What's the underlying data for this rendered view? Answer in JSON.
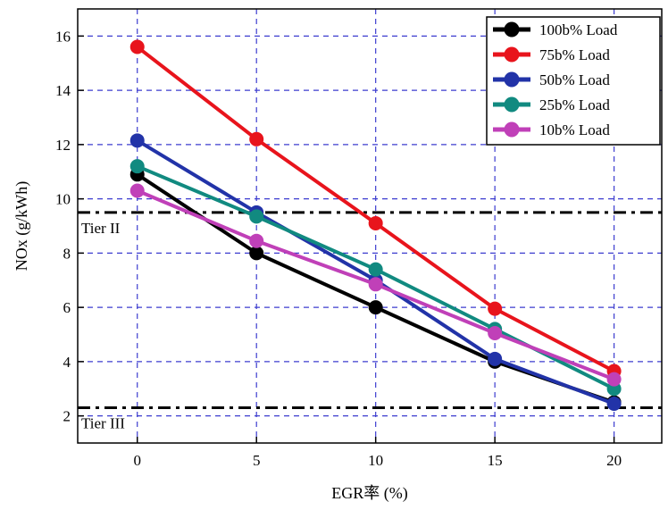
{
  "chart_data": {
    "type": "line",
    "xlabel": "EGR率 (%)",
    "ylabel": "NOx (g/kWh)",
    "xlim": [
      -2.5,
      22
    ],
    "ylim": [
      1,
      17
    ],
    "xticks": [
      "0",
      "5",
      "10",
      "15",
      "20"
    ],
    "yticks": [
      "2",
      "4",
      "6",
      "8",
      "10",
      "12",
      "14",
      "16"
    ],
    "grid": true,
    "legend_position": "top-right",
    "series": [
      {
        "name": "100b% Load",
        "color": "#000000",
        "x": [
          0,
          5,
          10,
          15,
          20
        ],
        "y": [
          10.9,
          8.0,
          6.0,
          4.0,
          2.5
        ]
      },
      {
        "name": "75b% Load",
        "color": "#e8141c",
        "x": [
          0,
          5,
          10,
          15,
          20
        ],
        "y": [
          15.6,
          12.2,
          9.1,
          5.95,
          3.65
        ]
      },
      {
        "name": "50b% Load",
        "color": "#2233a8",
        "x": [
          0,
          5,
          10,
          15,
          20
        ],
        "y": [
          12.15,
          9.5,
          7.0,
          4.1,
          2.45
        ]
      },
      {
        "name": "25b% Load",
        "color": "#118a80",
        "x": [
          0,
          5,
          10,
          15,
          20
        ],
        "y": [
          11.2,
          9.35,
          7.4,
          5.2,
          3.0
        ]
      },
      {
        "name": "10b% Load",
        "color": "#c040b8",
        "x": [
          0,
          5,
          10,
          15,
          20
        ],
        "y": [
          10.3,
          8.45,
          6.85,
          5.05,
          3.35
        ]
      }
    ],
    "reference_lines": [
      {
        "label": "Tier II",
        "y": 9.5
      },
      {
        "label": "Tier III",
        "y": 2.3
      }
    ]
  }
}
